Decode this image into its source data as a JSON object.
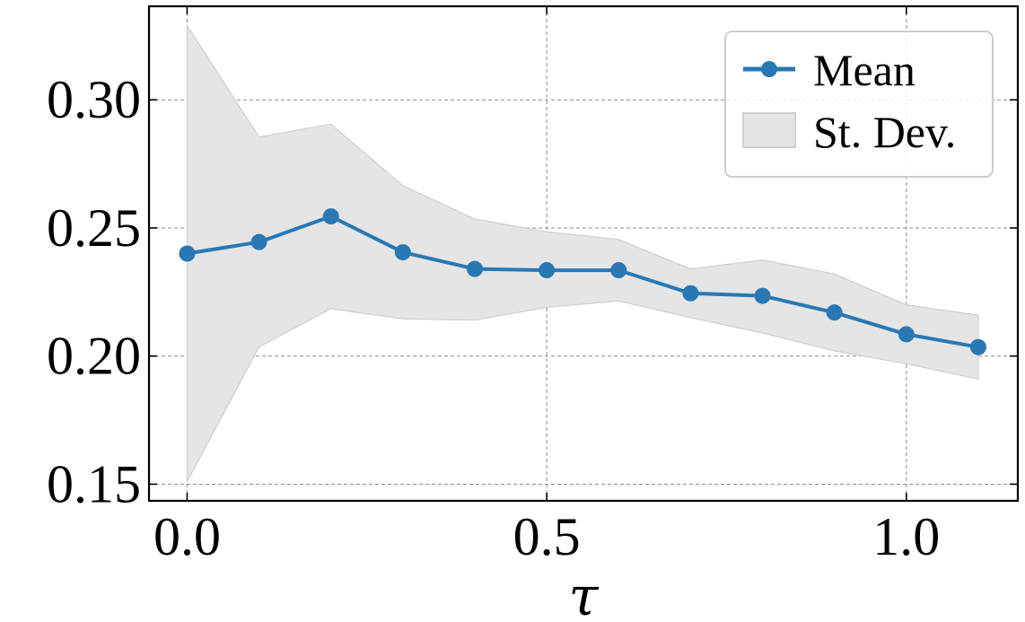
{
  "chart_data": {
    "type": "line",
    "title": "",
    "xlabel": "τ",
    "ylabel": "",
    "xlim": [
      -0.053,
      1.155
    ],
    "ylim": [
      0.1435,
      0.3365
    ],
    "x_ticks": [
      0.0,
      0.5,
      1.0
    ],
    "x_tick_labels": [
      "0.0",
      "0.5",
      "1.0"
    ],
    "y_ticks": [
      0.15,
      0.2,
      0.25,
      0.3
    ],
    "y_tick_labels": [
      "0.15",
      "0.20",
      "0.25",
      "0.30"
    ],
    "grid": true,
    "legend_position": "top-right",
    "legend": [
      {
        "label": "Mean",
        "kind": "line-marker"
      },
      {
        "label": "St. Dev.",
        "kind": "patch"
      }
    ],
    "x": [
      0.0,
      0.1,
      0.2,
      0.3,
      0.4,
      0.5,
      0.6,
      0.7,
      0.8,
      0.9,
      1.0,
      1.1
    ],
    "series": [
      {
        "name": "Mean",
        "values": [
          0.24,
          0.2445,
          0.2545,
          0.2405,
          0.234,
          0.2335,
          0.2335,
          0.2245,
          0.2235,
          0.217,
          0.2085,
          0.2035
        ]
      }
    ],
    "band": {
      "name": "St. Dev.",
      "upper": [
        0.329,
        0.2855,
        0.2905,
        0.2665,
        0.2535,
        0.2485,
        0.2455,
        0.234,
        0.2375,
        0.232,
        0.22,
        0.216
      ],
      "lower": [
        0.151,
        0.2035,
        0.2185,
        0.2145,
        0.214,
        0.219,
        0.2215,
        0.215,
        0.209,
        0.202,
        0.197,
        0.191
      ]
    },
    "colors": {
      "line": "#2878b5",
      "band": "#e5e5e5",
      "band_edge": "#d0d0d0"
    }
  }
}
